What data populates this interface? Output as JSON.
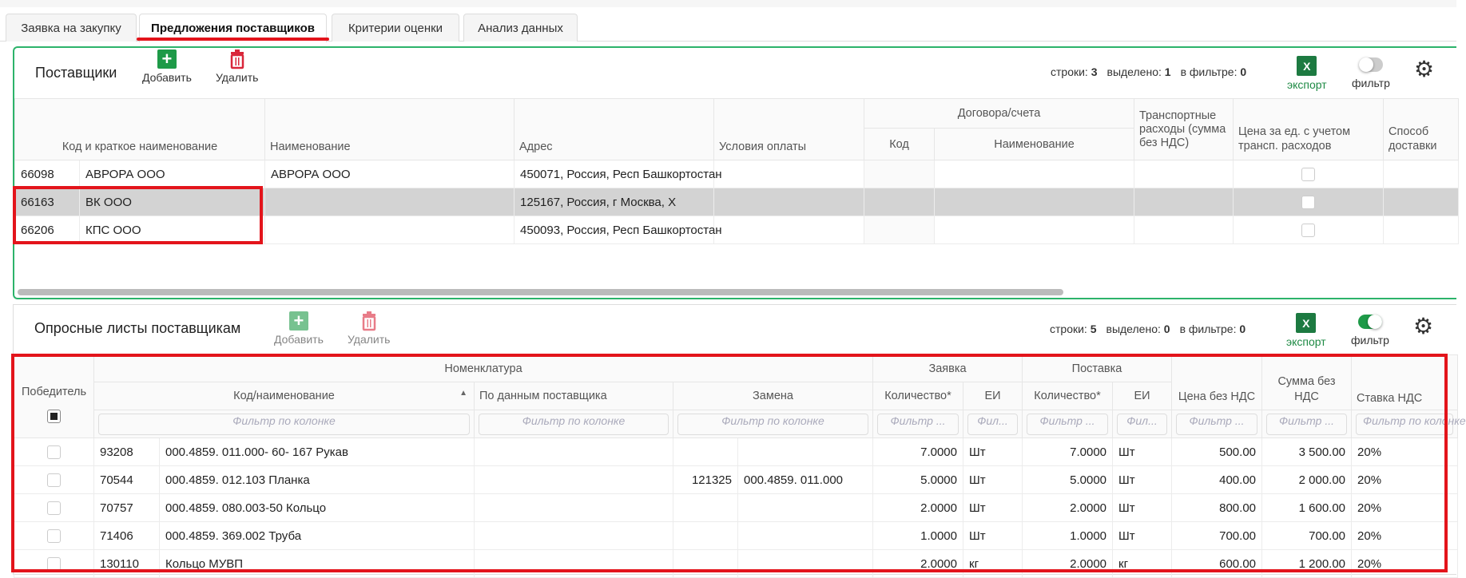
{
  "tabs": [
    {
      "label": "Заявка на закупку"
    },
    {
      "label": "Предложения поставщиков",
      "active": true
    },
    {
      "label": "Критерии оценки"
    },
    {
      "label": "Анализ данных"
    }
  ],
  "suppliers": {
    "title": "Поставщики",
    "add_label": "Добавить",
    "delete_label": "Удалить",
    "counts": {
      "rows_label": "строки:",
      "rows": "3",
      "selected_label": "выделено:",
      "selected": "1",
      "filtered_label": "в фильтре:",
      "filtered": "0"
    },
    "export_label": "экспорт",
    "filter_label": "фильтр",
    "filter_on": false,
    "headers": {
      "code_name": "Код и краткое наименование",
      "name": "Наименование",
      "address": "Адрес",
      "payment": "Условия оплаты",
      "contracts": "Договора/счета",
      "contract_code": "Код",
      "contract_name": "Наименование",
      "transport": "Транспортные расходы (сумма без НДС)",
      "price_transport": "Цена за ед. с учетом трансп. расходов",
      "delivery": "Способ доставки"
    },
    "rows": [
      {
        "code": "66098",
        "short": "АВРОРА ООО",
        "name": "АВРОРА ООО",
        "address": "450071, Россия, Респ Башкортостан",
        "selected": false
      },
      {
        "code": "66163",
        "short": "ВК ООО",
        "name": "",
        "address": "125167, Россия, г Москва, Х",
        "selected": true
      },
      {
        "code": "66206",
        "short": "КПС ООО",
        "name": "",
        "address": "450093, Россия, Респ Башкортостан",
        "selected": false
      }
    ]
  },
  "questionnaires": {
    "title": "Опросные листы поставщикам",
    "add_label": "Добавить",
    "delete_label": "Удалить",
    "counts": {
      "rows_label": "строки:",
      "rows": "5",
      "selected_label": "выделено:",
      "selected": "0",
      "filtered_label": "в фильтре:",
      "filtered": "0"
    },
    "export_label": "экспорт",
    "filter_label": "фильтр",
    "filter_on": true,
    "headers": {
      "winner": "Победитель",
      "nomenclature": "Номенклатура",
      "code_name": "Код/наименование",
      "supplier_data": "По данным поставщика",
      "replacement": "Замена",
      "request": "Заявка",
      "delivery": "Поставка",
      "qty": "Количество*",
      "unit": "ЕИ",
      "price": "Цена без НДС",
      "sum": "Сумма без НДС",
      "vat": "Ставка НДС"
    },
    "filter_placeholder": "Фильтр по колонке",
    "filter_short": "Фильтр ...",
    "filter_tiny": "Фил...",
    "rows": [
      {
        "code": "93208",
        "name": "000.4859. 011.000- 60- 167 Рукав",
        "supplier": "",
        "rep_code": "",
        "rep_name": "",
        "req_qty": "7.0000",
        "req_unit": "Шт",
        "del_qty": "7.0000",
        "del_unit": "Шт",
        "price": "500.00",
        "sum": "3 500.00",
        "vat": "20%"
      },
      {
        "code": "70544",
        "name": "000.4859. 012.103 Планка",
        "supplier": "",
        "rep_code": "121325",
        "rep_name": "000.4859. 011.000",
        "req_qty": "5.0000",
        "req_unit": "Шт",
        "del_qty": "5.0000",
        "del_unit": "Шт",
        "price": "400.00",
        "sum": "2 000.00",
        "vat": "20%"
      },
      {
        "code": "70757",
        "name": "000.4859. 080.003-50 Кольцо",
        "supplier": "",
        "rep_code": "",
        "rep_name": "",
        "req_qty": "2.0000",
        "req_unit": "Шт",
        "del_qty": "2.0000",
        "del_unit": "Шт",
        "price": "800.00",
        "sum": "1 600.00",
        "vat": "20%"
      },
      {
        "code": "71406",
        "name": "000.4859. 369.002 Труба",
        "supplier": "",
        "rep_code": "",
        "rep_name": "",
        "req_qty": "1.0000",
        "req_unit": "Шт",
        "del_qty": "1.0000",
        "del_unit": "Шт",
        "price": "700.00",
        "sum": "700.00",
        "vat": "20%"
      },
      {
        "code": "130110",
        "name": "Кольцо МУВП",
        "supplier": "",
        "rep_code": "",
        "rep_name": "",
        "req_qty": "2.0000",
        "req_unit": "кг",
        "del_qty": "2.0000",
        "del_unit": "кг",
        "price": "600.00",
        "sum": "1 200.00",
        "vat": "20%"
      }
    ]
  },
  "colors": {
    "accent": "#1e9a48",
    "highlight": "#e3141b",
    "selected_row": "#d3d3d3"
  }
}
